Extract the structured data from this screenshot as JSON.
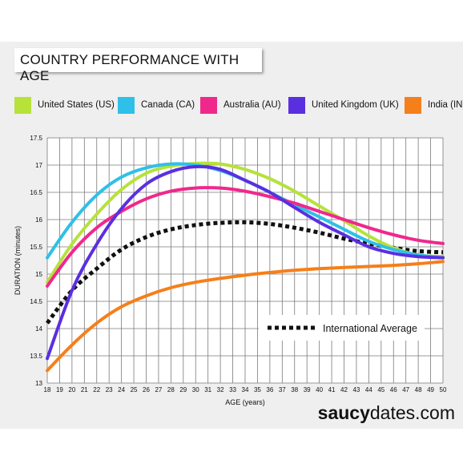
{
  "header": {
    "title": "COUNTRY PERFORMANCE WITH AGE"
  },
  "brand": {
    "bold": "saucy",
    "rest": "dates.com"
  },
  "chart_data": {
    "type": "line",
    "title": "COUNTRY PERFORMANCE WITH AGE",
    "xlabel": "AGE (years)",
    "ylabel": "DURATION (minutes)",
    "xlim": [
      18,
      50
    ],
    "ylim": [
      13,
      17.5
    ],
    "x_ticks": [
      18,
      19,
      20,
      21,
      22,
      23,
      24,
      25,
      26,
      27,
      28,
      29,
      30,
      31,
      32,
      33,
      34,
      35,
      36,
      37,
      38,
      39,
      40,
      41,
      42,
      43,
      44,
      45,
      46,
      47,
      48,
      49,
      50
    ],
    "y_ticks": [
      13,
      13.5,
      14,
      14.5,
      15,
      15.5,
      16,
      16.5,
      17,
      17.5
    ],
    "grid": true,
    "legend_position": "top",
    "x": [
      18,
      20,
      22,
      24,
      26,
      28,
      30,
      32,
      34,
      36,
      38,
      40,
      42,
      44,
      46,
      48,
      50
    ],
    "series": [
      {
        "name": "United States (US)",
        "color": "#b6e23a",
        "style": "solid",
        "values": [
          14.85,
          15.55,
          16.1,
          16.55,
          16.85,
          16.98,
          17.03,
          17.02,
          16.92,
          16.75,
          16.52,
          16.25,
          15.98,
          15.7,
          15.48,
          15.35,
          15.32
        ]
      },
      {
        "name": "Canada (CA)",
        "color": "#2ec0e8",
        "style": "solid",
        "values": [
          15.3,
          15.95,
          16.45,
          16.78,
          16.95,
          17.02,
          17.0,
          16.9,
          16.72,
          16.5,
          16.27,
          16.05,
          15.82,
          15.6,
          15.45,
          15.35,
          15.3
        ]
      },
      {
        "name": "Australia (AU)",
        "color": "#f0288c",
        "style": "solid",
        "values": [
          14.78,
          15.4,
          15.85,
          16.15,
          16.38,
          16.52,
          16.58,
          16.58,
          16.52,
          16.42,
          16.3,
          16.15,
          16.0,
          15.85,
          15.72,
          15.62,
          15.56
        ]
      },
      {
        "name": "United Kingdom (UK)",
        "color": "#5a2fe0",
        "style": "solid",
        "values": [
          13.45,
          14.7,
          15.55,
          16.2,
          16.65,
          16.88,
          16.97,
          16.92,
          16.72,
          16.5,
          16.22,
          15.95,
          15.72,
          15.5,
          15.38,
          15.32,
          15.3
        ]
      },
      {
        "name": "India (IN)",
        "color": "#f57f1a",
        "style": "solid",
        "values": [
          13.23,
          13.7,
          14.1,
          14.4,
          14.6,
          14.75,
          14.85,
          14.92,
          14.98,
          15.03,
          15.07,
          15.1,
          15.12,
          15.14,
          15.16,
          15.19,
          15.23
        ]
      },
      {
        "name": "International Average",
        "color": "#111111",
        "style": "dashed",
        "values": [
          14.1,
          14.7,
          15.1,
          15.45,
          15.68,
          15.82,
          15.9,
          15.94,
          15.95,
          15.92,
          15.85,
          15.76,
          15.65,
          15.56,
          15.48,
          15.42,
          15.4
        ]
      }
    ]
  }
}
